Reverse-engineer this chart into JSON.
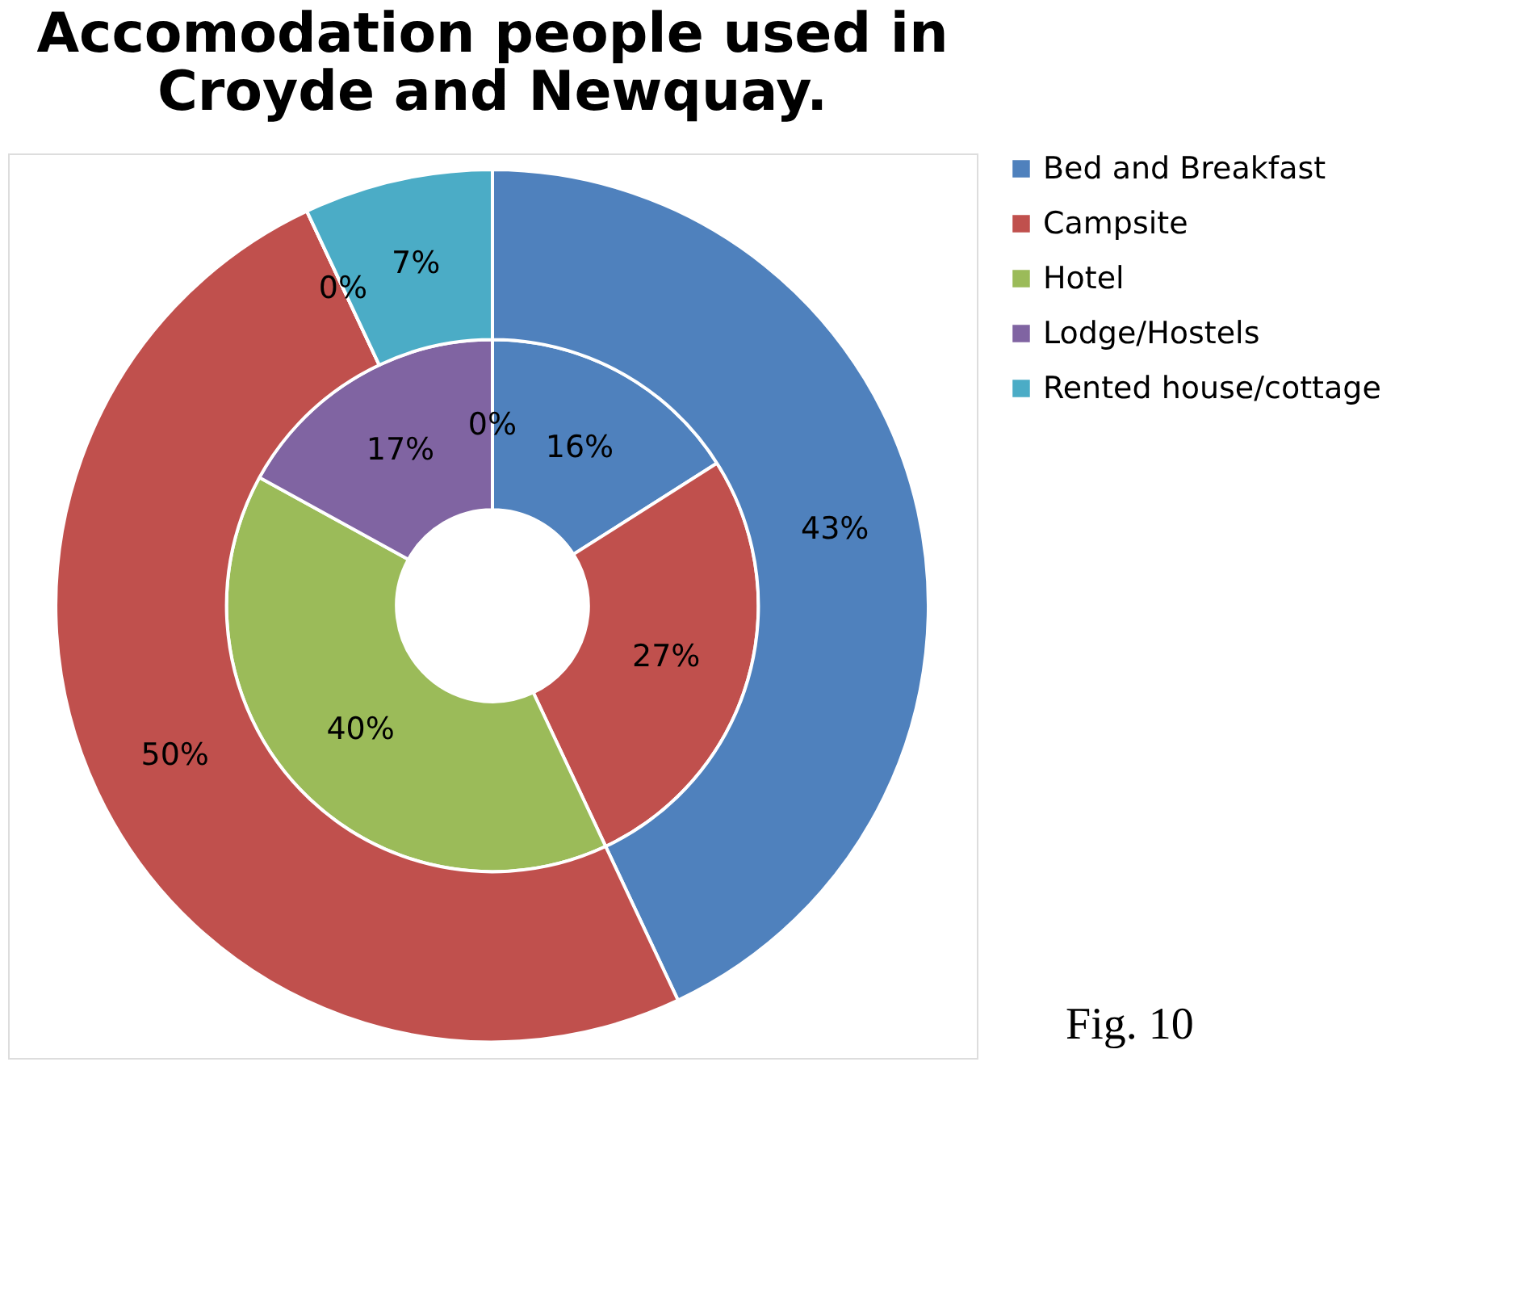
{
  "chart_data": {
    "type": "donut",
    "title": "Accomodation people used in Croyde and Newquay.",
    "categories": [
      "Bed and Breakfast",
      "Campsite",
      "Hotel",
      "Lodge/Hostels",
      "Rented house/cottage"
    ],
    "colors": [
      "#4f81bd",
      "#c0504d",
      "#9bbb59",
      "#8064a2",
      "#4bacc6"
    ],
    "series": [
      {
        "values": [
          16,
          27,
          40,
          17,
          0
        ],
        "value_labels": [
          "16%",
          "27%",
          "40%",
          "17%",
          "0%"
        ]
      },
      {
        "values": [
          43,
          50,
          0,
          0,
          7
        ],
        "value_labels": [
          "43%",
          "50%",
          "0%",
          null,
          "7%"
        ]
      }
    ],
    "legend": "right",
    "annotations": [
      "Fig. 10"
    ]
  }
}
